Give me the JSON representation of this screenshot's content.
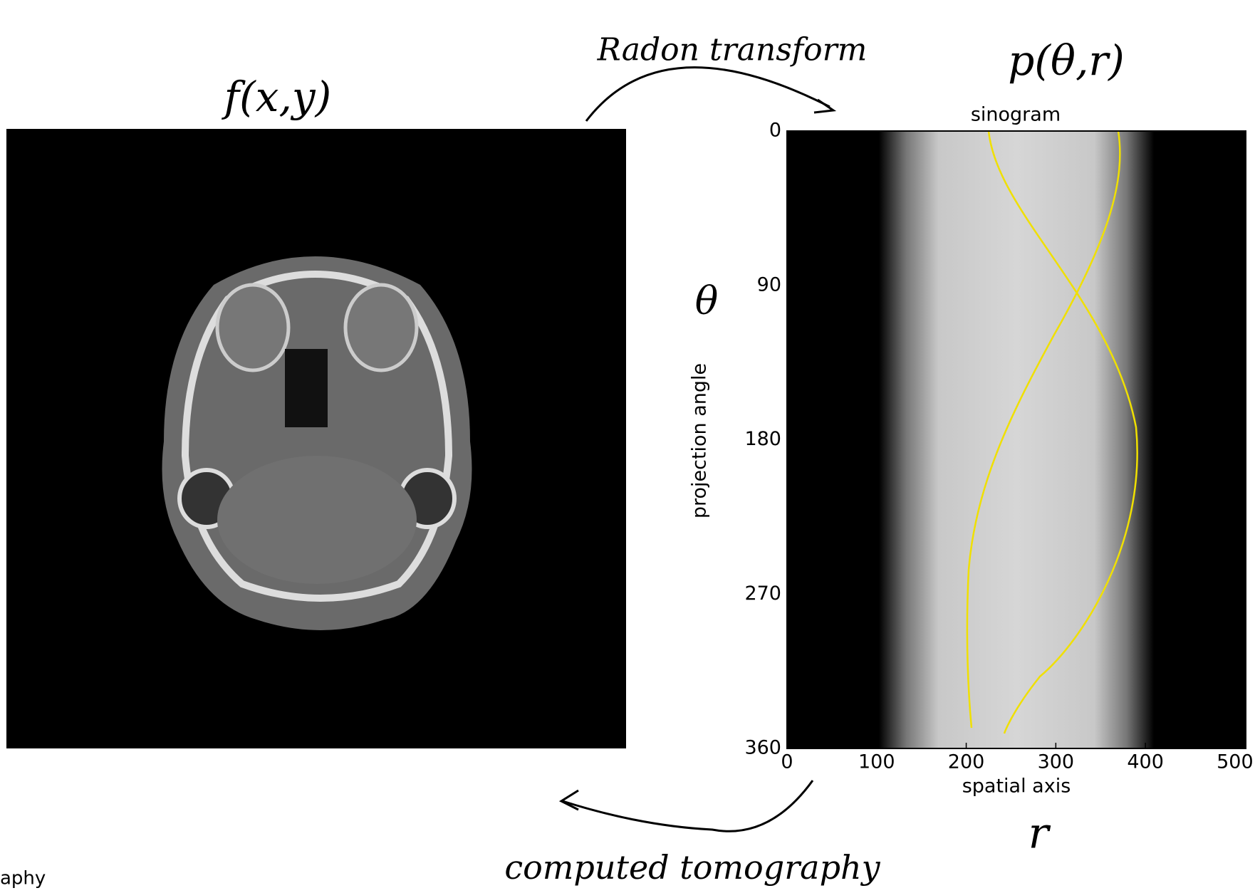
{
  "annotations": {
    "image_label": "f(x,y)",
    "transform": "Radon transform",
    "sinogram_label": "p(θ,r)",
    "angle_symbol": "θ",
    "radius_symbol": "r",
    "inverse": "computed tomography",
    "cut_text": "aphy"
  },
  "sinogram": {
    "title": "sinogram",
    "xlabel": "spatial axis",
    "ylabel": "projection angle",
    "xlim": [
      0,
      512
    ],
    "ylim": [
      360,
      0
    ],
    "xticks": [
      0,
      100,
      200,
      300,
      400,
      500
    ],
    "yticks": [
      0,
      90,
      180,
      270,
      360
    ]
  }
}
